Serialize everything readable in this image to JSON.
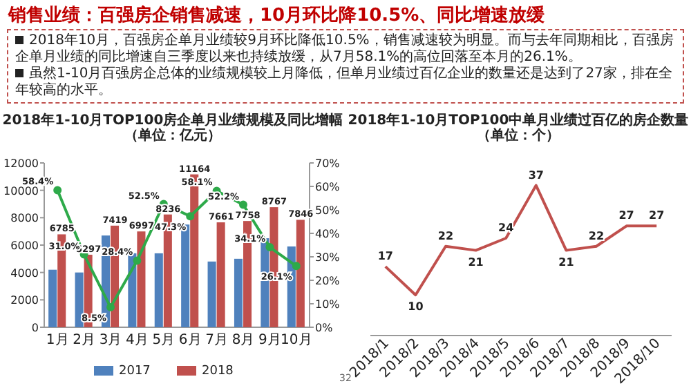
{
  "chart_data": [
    {
      "type": "bar",
      "title": "2018年1-10月TOP100房企单月业绩规模及同比增幅（单位：亿元）",
      "annotations": [
        "销售业绩：百强房企销售减速，10月环比降10.5%、同比增速放缓",
        "2018年10月，百强房企单月业绩较9月环比降低10.5%，销售减速较为明显。而与去年同期相比，百强房企单月业绩的同比增速自三季度以来也持续放缓，从7月58.1%的高位回落至本月的26.1%。",
        "虽然1-10月百强房企总体的业绩规模较上月降低，但单月业绩过百亿企业的数量还是达到了27家，排在全年较高的水平。"
      ],
      "categories": [
        "1月",
        "2月",
        "3月",
        "4月",
        "5月",
        "6月",
        "7月",
        "8月",
        "9月",
        "10月"
      ],
      "series": [
        {
          "name": "2017",
          "color": "#4f81bd",
          "values": [
            4200,
            4000,
            6700,
            5400,
            5400,
            7500,
            4800,
            5000,
            6500,
            5900
          ]
        },
        {
          "name": "2018",
          "color": "#c0504d",
          "values": [
            6785,
            5297,
            7419,
            6997,
            8236,
            11164,
            7661,
            7758,
            8767,
            7846
          ],
          "value_labels": [
            "6785",
            "5297",
            "7419",
            "6997",
            "8236",
            "11164",
            "7661",
            "7758",
            "8767",
            "7846"
          ]
        },
        {
          "type": "line",
          "axis": "y2",
          "color": "#2eaa4a",
          "marker": "circle",
          "values": [
            58.4,
            31.0,
            8.5,
            28.4,
            52.5,
            47.3,
            58.1,
            52.2,
            34.1,
            26.1
          ],
          "value_labels": [
            "58.4%",
            "31.0%",
            "8.5%",
            "28.4%",
            "52.5%",
            "47.3%",
            "58.1%",
            "52.2%",
            "34.1%",
            "26.1%"
          ]
        }
      ],
      "ylim": [
        0,
        12000
      ],
      "yticks": [
        0,
        2000,
        4000,
        6000,
        8000,
        10000,
        12000
      ],
      "y2lim": [
        0,
        70
      ],
      "y2ticks": [
        {
          "value": 0,
          "label": "0%"
        },
        {
          "value": 10,
          "label": "10%"
        },
        {
          "value": 20,
          "label": "20%"
        },
        {
          "value": 30,
          "label": "30%"
        },
        {
          "value": 40,
          "label": "40%"
        },
        {
          "value": 50,
          "label": "50%"
        },
        {
          "value": 60,
          "label": "60%"
        },
        {
          "value": 70,
          "label": "70%"
        }
      ],
      "legend": "bottom"
    },
    {
      "type": "line",
      "title": "2018年1-10月TOP100中单月业绩过百亿的房企数量（单位：个）",
      "categories": [
        "2018/1",
        "2018/2",
        "2018/3",
        "2018/4",
        "2018/5",
        "2018/6",
        "2018/7",
        "2018/8",
        "2018/9",
        "2018/10"
      ],
      "series": [
        {
          "color": "#c0504d",
          "values": [
            17,
            10,
            22,
            21,
            24,
            37,
            21,
            22,
            27,
            27
          ]
        }
      ],
      "data_labels": true,
      "annotations": [
        "32"
      ]
    }
  ]
}
